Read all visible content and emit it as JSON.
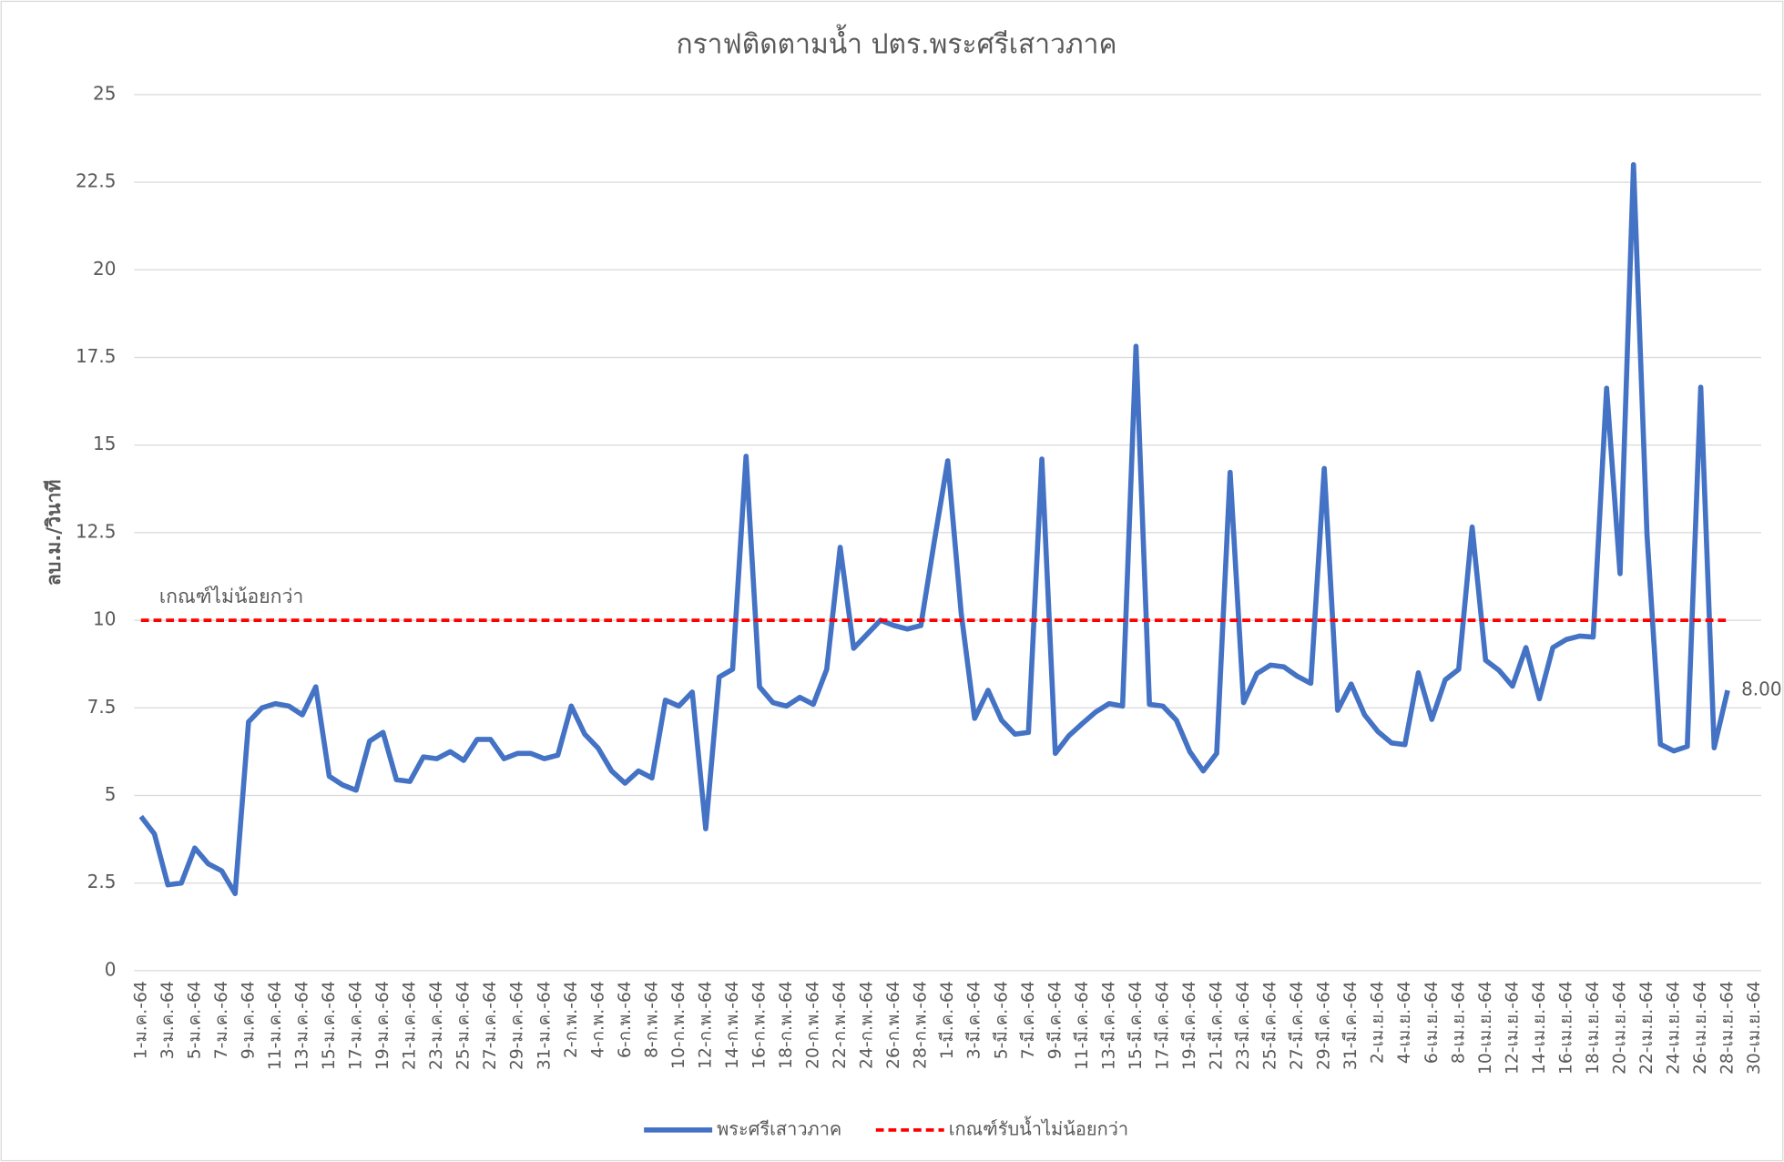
{
  "chart_data": {
    "type": "line",
    "title": "กราฟติดตามน้ำ ปตร.พระศรีเสาวภาค",
    "y_label": "ลบ.ม./วินาที",
    "annotation": "เกณฑ์ไม่น้อยกว่า",
    "categories": [
      "1-ม.ค.-64",
      null,
      "3-ม.ค.-64",
      null,
      "5-ม.ค.-64",
      null,
      "7-ม.ค.-64",
      null,
      "9-ม.ค.-64",
      null,
      "11-ม.ค.-64",
      null,
      "13-ม.ค.-64",
      null,
      "15-ม.ค.-64",
      null,
      "17-ม.ค.-64",
      null,
      "19-ม.ค.-64",
      null,
      "21-ม.ค.-64",
      null,
      "23-ม.ค.-64",
      null,
      "25-ม.ค.-64",
      null,
      "27-ม.ค.-64",
      null,
      "29-ม.ค.-64",
      null,
      "31-ม.ค.-64",
      null,
      "2-ก.พ.-64",
      null,
      "4-ก.พ.-64",
      null,
      "6-ก.พ.-64",
      null,
      "8-ก.พ.-64",
      null,
      "10-ก.พ.-64",
      null,
      "12-ก.พ.-64",
      null,
      "14-ก.พ.-64",
      null,
      "16-ก.พ.-64",
      null,
      "18-ก.พ.-64",
      null,
      "20-ก.พ.-64",
      null,
      "22-ก.พ.-64",
      null,
      "24-ก.พ.-64",
      null,
      "26-ก.พ.-64",
      null,
      "28-ก.พ.-64",
      null,
      "1-มี.ค.-64",
      null,
      "3-มี.ค.-64",
      null,
      "5-มี.ค.-64",
      null,
      "7-มี.ค.-64",
      null,
      "9-มี.ค.-64",
      null,
      "11-มี.ค.-64",
      null,
      "13-มี.ค.-64",
      null,
      "15-มี.ค.-64",
      null,
      "17-มี.ค.-64",
      null,
      "19-มี.ค.-64",
      null,
      "21-มี.ค.-64",
      null,
      "23-มี.ค.-64",
      null,
      "25-มี.ค.-64",
      null,
      "27-มี.ค.-64",
      null,
      "29-มี.ค.-64",
      null,
      "31-มี.ค.-64",
      null,
      "2-เม.ย.-64",
      null,
      "4-เม.ย.-64",
      null,
      "6-เม.ย.-64",
      null,
      "8-เม.ย.-64",
      null,
      "10-เม.ย.-64",
      null,
      "12-เม.ย.-64",
      null,
      "14-เม.ย.-64",
      null,
      "16-เม.ย.-64",
      null,
      "18-เม.ย.-64",
      null,
      "20-เม.ย.-64",
      null,
      "22-เม.ย.-64",
      null,
      "24-เม.ย.-64",
      null,
      "26-เม.ย.-64",
      null,
      "28-เม.ย.-64",
      null,
      "30-เม.ย.-64"
    ],
    "series": [
      {
        "name": "พระศรีเสาวภาค",
        "color": "#4472c4",
        "dashed": false,
        "values": [
          4.4,
          3.9,
          2.45,
          2.5,
          3.5,
          3.05,
          2.85,
          2.2,
          7.1,
          7.5,
          7.62,
          7.55,
          7.3,
          8.1,
          5.55,
          5.3,
          5.15,
          6.55,
          6.8,
          5.45,
          5.4,
          6.1,
          6.05,
          6.25,
          6.0,
          6.6,
          6.6,
          6.05,
          6.2,
          6.2,
          6.05,
          6.15,
          7.55,
          6.75,
          6.35,
          5.7,
          5.35,
          5.7,
          5.5,
          7.72,
          7.55,
          7.95,
          4.05,
          8.38,
          8.6,
          14.68,
          8.1,
          7.65,
          7.55,
          7.8,
          7.6,
          8.6,
          12.08,
          9.2,
          9.6,
          10.0,
          9.85,
          9.75,
          9.85,
          12.25,
          14.55,
          10.2,
          7.2,
          8.0,
          7.15,
          6.75,
          6.8,
          14.6,
          6.2,
          6.7,
          7.05,
          7.38,
          7.62,
          7.55,
          17.82,
          7.6,
          7.55,
          7.15,
          6.25,
          5.7,
          6.2,
          14.22,
          7.65,
          8.48,
          8.72,
          8.67,
          8.4,
          8.2,
          14.33,
          7.43,
          8.18,
          7.3,
          6.82,
          6.5,
          6.45,
          8.5,
          7.17,
          8.3,
          8.6,
          12.66,
          8.86,
          8.57,
          8.12,
          9.22,
          7.76,
          9.22,
          9.45,
          9.55,
          9.52,
          16.62,
          11.33,
          23.0,
          12.47,
          6.46,
          6.27,
          6.4,
          16.65,
          6.36,
          8.0,
          null,
          null
        ],
        "value_labels": [
          null,
          null,
          null,
          null,
          null,
          null,
          null,
          null,
          null,
          null,
          null,
          null,
          null,
          null,
          null,
          null,
          null,
          null,
          null,
          null,
          null,
          null,
          null,
          null,
          null,
          null,
          null,
          null,
          null,
          null,
          null,
          null,
          null,
          null,
          null,
          null,
          null,
          null,
          null,
          null,
          null,
          null,
          null,
          null,
          null,
          null,
          null,
          null,
          null,
          null,
          null,
          null,
          null,
          null,
          null,
          null,
          null,
          null,
          null,
          null,
          null,
          null,
          null,
          null,
          null,
          null,
          null,
          null,
          null,
          null,
          null,
          null,
          null,
          null,
          null,
          null,
          null,
          null,
          null,
          null,
          null,
          null,
          null,
          null,
          null,
          null,
          null,
          null,
          null,
          null,
          null,
          null,
          null,
          null,
          null,
          null,
          null,
          null,
          null,
          null,
          null,
          null,
          null,
          null,
          null,
          null,
          null,
          null,
          null,
          null,
          null,
          null,
          null,
          null,
          null,
          null,
          null,
          null,
          "8.00",
          null,
          null
        ]
      },
      {
        "name": "เกณฑ์รับน้ำไม่น้อยกว่า",
        "color": "#ff0000",
        "dashed": true,
        "values": [
          10,
          10,
          10,
          10,
          10,
          10,
          10,
          10,
          10,
          10,
          10,
          10,
          10,
          10,
          10,
          10,
          10,
          10,
          10,
          10,
          10,
          10,
          10,
          10,
          10,
          10,
          10,
          10,
          10,
          10,
          10,
          10,
          10,
          10,
          10,
          10,
          10,
          10,
          10,
          10,
          10,
          10,
          10,
          10,
          10,
          10,
          10,
          10,
          10,
          10,
          10,
          10,
          10,
          10,
          10,
          10,
          10,
          10,
          10,
          10,
          10,
          10,
          10,
          10,
          10,
          10,
          10,
          10,
          10,
          10,
          10,
          10,
          10,
          10,
          10,
          10,
          10,
          10,
          10,
          10,
          10,
          10,
          10,
          10,
          10,
          10,
          10,
          10,
          10,
          10,
          10,
          10,
          10,
          10,
          10,
          10,
          10,
          10,
          10,
          10,
          10,
          10,
          10,
          10,
          10,
          10,
          10,
          10,
          10,
          10,
          10,
          10,
          10,
          10,
          10,
          10,
          10,
          10,
          10,
          null,
          null
        ]
      }
    ],
    "ylim": [
      0,
      25
    ],
    "yticks": [
      0,
      2.5,
      5,
      7.5,
      10,
      12.5,
      15,
      17.5,
      20,
      22.5,
      25
    ],
    "grid": true,
    "legend": "bottom"
  }
}
